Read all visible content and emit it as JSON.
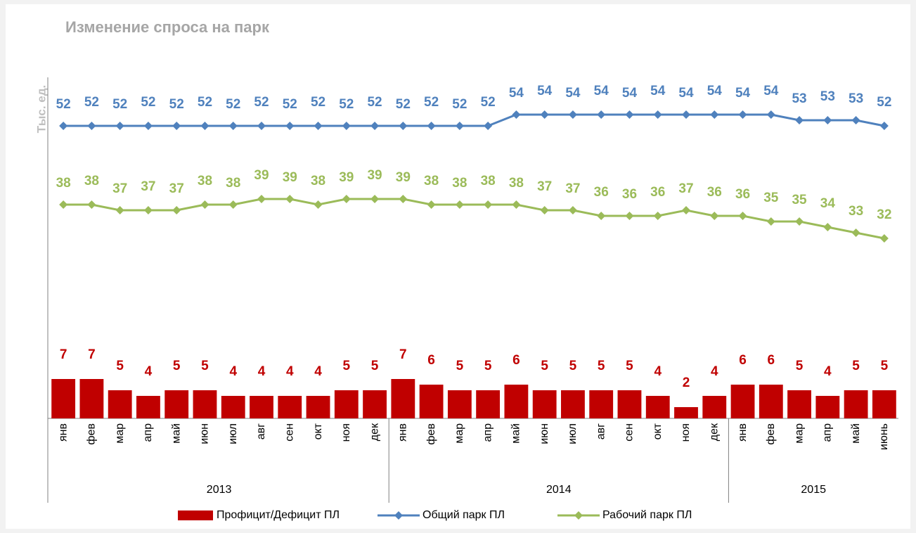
{
  "chart_data": {
    "type": "bar",
    "title": "Изменение спроса на парк",
    "y_label": "Тыс. ед.",
    "categories": [
      "янв",
      "фев",
      "мар",
      "апр",
      "май",
      "июн",
      "июл",
      "авг",
      "сен",
      "окт",
      "ноя",
      "дек",
      "янв",
      "фев",
      "мар",
      "апр",
      "май",
      "июн",
      "июл",
      "авг",
      "сен",
      "окт",
      "ноя",
      "дек",
      "янв",
      "фев",
      "мар",
      "апр",
      "май",
      "июнь"
    ],
    "groups": [
      {
        "label": "2013",
        "count": 12
      },
      {
        "label": "2014",
        "count": 12
      },
      {
        "label": "2015",
        "count": 6
      }
    ],
    "ylim": [
      0,
      62
    ],
    "series": [
      {
        "name": "Профицит/Дефицит ПЛ",
        "type": "bar",
        "color": "#c00000",
        "values": [
          7,
          7,
          5,
          4,
          5,
          5,
          4,
          4,
          4,
          4,
          5,
          5,
          7,
          6,
          5,
          5,
          6,
          5,
          5,
          5,
          5,
          4,
          2,
          4,
          6,
          6,
          5,
          4,
          5,
          5
        ]
      },
      {
        "name": "Общий парк ПЛ",
        "type": "line",
        "color": "#4f81bd",
        "values": [
          52,
          52,
          52,
          52,
          52,
          52,
          52,
          52,
          52,
          52,
          52,
          52,
          52,
          52,
          52,
          52,
          54,
          54,
          54,
          54,
          54,
          54,
          54,
          54,
          54,
          54,
          53,
          53,
          53,
          52
        ]
      },
      {
        "name": "Рабочий парк ПЛ",
        "type": "line",
        "color": "#9bbb59",
        "values": [
          38,
          38,
          37,
          37,
          37,
          38,
          38,
          39,
          39,
          38,
          39,
          39,
          39,
          38,
          38,
          38,
          38,
          37,
          37,
          36,
          36,
          36,
          37,
          36,
          36,
          35,
          35,
          34,
          33,
          32
        ]
      }
    ]
  }
}
